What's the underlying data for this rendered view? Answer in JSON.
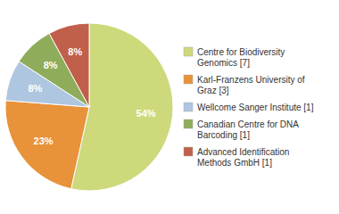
{
  "chart_data": {
    "type": "pie",
    "categories": [
      "Centre for Biodiversity\nGenomics [7]",
      "Karl-Franzens University of\nGraz [3]",
      "Wellcome Sanger Institute [1]",
      "Canadian Centre for DNA\nBarcoding [1]",
      "Advanced Identification\nMethods GmbH [1]"
    ],
    "values": [
      54,
      23,
      8,
      8,
      8
    ],
    "value_labels": [
      "54%",
      "23%",
      "8%",
      "8%",
      "8%"
    ],
    "colors": [
      "#cdd97a",
      "#e8923a",
      "#aec6e0",
      "#8fac5a",
      "#c0604a"
    ],
    "data_labels": true,
    "legend": "right"
  }
}
